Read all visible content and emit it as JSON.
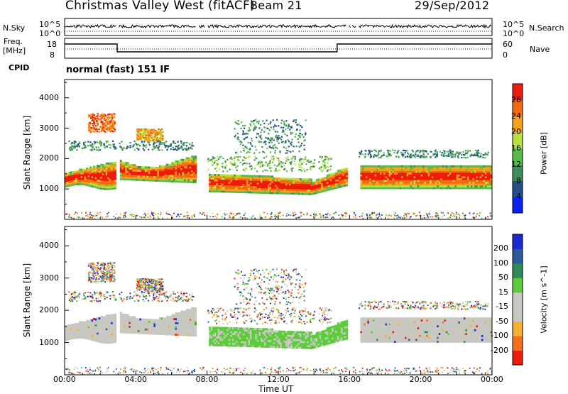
{
  "header": {
    "title": "Christmas Valley West (fitACF)",
    "beam": "Beam 21",
    "date": "29/Sep/2012"
  },
  "top_panels": {
    "nsky_label": "N.Sky",
    "nsky_ticks": [
      "10^5",
      "10^0"
    ],
    "nsearch_label": "N.Search",
    "nsearch_ticks": [
      "10^5",
      "10^0"
    ],
    "freq_label": [
      "Freq.",
      "[MHz]"
    ],
    "freq_ticks": [
      "18",
      "8"
    ],
    "nave_label": "Nave",
    "nave_ticks": [
      "60",
      "0"
    ]
  },
  "cpid": {
    "label": "CPID",
    "text": "normal (fast) 151 IF"
  },
  "colors": {
    "power": [
      "#0a23f0",
      "#24508a",
      "#3e8e5a",
      "#5bbb4a",
      "#b8e23a",
      "#f5a21a",
      "#f56a10",
      "#ee1a0a"
    ],
    "velocity": [
      "#ee1a0a",
      "#f5701a",
      "#f5b030",
      "#c8c8c0",
      "#c8c8c0",
      "#5bcc3a",
      "#2d8a5a",
      "#2a5a9a",
      "#1a2ad0"
    ]
  },
  "chart_data": [
    {
      "type": "heatmap",
      "panel": "power",
      "ylabel": "Slant Range [km]",
      "ylim": [
        0,
        4600
      ],
      "yticks": [
        1000,
        2000,
        3000,
        4000
      ],
      "xlabel": "Time UT",
      "xlim": [
        0,
        24
      ],
      "xticks": [
        "00:00",
        "04:00",
        "08:00",
        "12:00",
        "16:00",
        "20:00",
        "00:00"
      ],
      "colorbar": {
        "title": "Power [dB]",
        "ticks": [
          "4",
          "8",
          "12",
          "16",
          "20",
          "24",
          "28"
        ]
      },
      "data_gaps_hours": [
        [
          2.9,
          3.0
        ],
        [
          7.35,
          7.5
        ],
        [
          7.85,
          8.0
        ],
        [
          15.85,
          15.95
        ],
        [
          16.1,
          16.15
        ],
        [
          16.4,
          16.5
        ]
      ]
    },
    {
      "type": "heatmap",
      "panel": "velocity",
      "ylabel": "Slant Range [km]",
      "ylim": [
        0,
        4600
      ],
      "yticks": [
        1000,
        2000,
        3000,
        4000
      ],
      "xlabel": "Time UT",
      "xlim": [
        0,
        24
      ],
      "xticks": [
        "00:00",
        "04:00",
        "08:00",
        "12:00",
        "16:00",
        "20:00",
        "00:00"
      ],
      "colorbar": {
        "title": "Velocity [m s^-1]",
        "ticks": [
          "200",
          "100",
          "50",
          "15",
          "-15",
          "-50",
          "-100",
          "-200"
        ]
      }
    }
  ],
  "axes": {
    "xlabel": "Time UT"
  }
}
